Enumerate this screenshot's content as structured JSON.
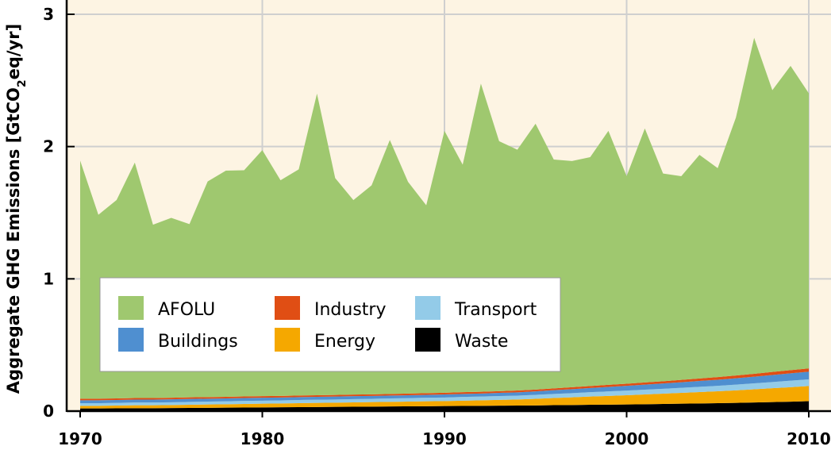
{
  "chart_data": {
    "type": "area",
    "stacked": true,
    "ylabel_main": "Aggregate GHG Emissions [GtCO",
    "ylabel_sub": "2",
    "ylabel_tail": "eq/yr]",
    "xlim": [
      1970,
      2010
    ],
    "ylim": [
      0,
      3
    ],
    "xticks": [
      1970,
      1980,
      1990,
      2000,
      2010
    ],
    "yticks": [
      0,
      1,
      2,
      3
    ],
    "grid": true,
    "legend_position": "lower-left",
    "background": "#fdf4e3",
    "x": [
      1970,
      1971,
      1972,
      1973,
      1974,
      1975,
      1976,
      1977,
      1978,
      1979,
      1980,
      1981,
      1982,
      1983,
      1984,
      1985,
      1986,
      1987,
      1988,
      1989,
      1990,
      1991,
      1992,
      1993,
      1994,
      1995,
      1996,
      1997,
      1998,
      1999,
      2000,
      2001,
      2002,
      2003,
      2004,
      2005,
      2006,
      2007,
      2008,
      2009,
      2010
    ],
    "series": [
      {
        "name": "Waste",
        "color": "#000000",
        "values": [
          0.02,
          0.02,
          0.021,
          0.022,
          0.022,
          0.023,
          0.024,
          0.025,
          0.026,
          0.027,
          0.028,
          0.029,
          0.03,
          0.031,
          0.032,
          0.033,
          0.034,
          0.035,
          0.036,
          0.037,
          0.038,
          0.039,
          0.04,
          0.041,
          0.042,
          0.043,
          0.045,
          0.046,
          0.048,
          0.049,
          0.05,
          0.052,
          0.054,
          0.056,
          0.058,
          0.06,
          0.062,
          0.065,
          0.068,
          0.071,
          0.075
        ]
      },
      {
        "name": "Energy",
        "color": "#f5a800",
        "values": [
          0.02,
          0.02,
          0.021,
          0.022,
          0.022,
          0.023,
          0.024,
          0.025,
          0.026,
          0.027,
          0.028,
          0.029,
          0.03,
          0.031,
          0.032,
          0.033,
          0.034,
          0.035,
          0.036,
          0.037,
          0.038,
          0.04,
          0.042,
          0.044,
          0.046,
          0.05,
          0.054,
          0.058,
          0.062,
          0.066,
          0.07,
          0.074,
          0.078,
          0.082,
          0.086,
          0.09,
          0.095,
          0.1,
          0.105,
          0.11,
          0.115
        ]
      },
      {
        "name": "Transport",
        "color": "#93cbe8",
        "values": [
          0.02,
          0.02,
          0.02,
          0.021,
          0.021,
          0.021,
          0.022,
          0.022,
          0.022,
          0.023,
          0.023,
          0.023,
          0.024,
          0.024,
          0.024,
          0.025,
          0.025,
          0.026,
          0.026,
          0.027,
          0.027,
          0.028,
          0.028,
          0.029,
          0.029,
          0.03,
          0.031,
          0.032,
          0.033,
          0.034,
          0.035,
          0.036,
          0.037,
          0.038,
          0.04,
          0.041,
          0.043,
          0.045,
          0.047,
          0.049,
          0.05
        ]
      },
      {
        "name": "Buildings",
        "color": "#4f8fd0",
        "values": [
          0.022,
          0.022,
          0.022,
          0.022,
          0.022,
          0.022,
          0.022,
          0.022,
          0.022,
          0.022,
          0.022,
          0.022,
          0.022,
          0.022,
          0.022,
          0.022,
          0.022,
          0.022,
          0.022,
          0.022,
          0.023,
          0.023,
          0.023,
          0.024,
          0.025,
          0.026,
          0.028,
          0.03,
          0.032,
          0.034,
          0.036,
          0.038,
          0.04,
          0.042,
          0.044,
          0.046,
          0.048,
          0.05,
          0.053,
          0.056,
          0.058
        ]
      },
      {
        "name": "Industry",
        "color": "#e04e14",
        "values": [
          0.012,
          0.012,
          0.012,
          0.012,
          0.012,
          0.012,
          0.012,
          0.012,
          0.012,
          0.012,
          0.012,
          0.012,
          0.012,
          0.012,
          0.012,
          0.012,
          0.012,
          0.012,
          0.013,
          0.013,
          0.013,
          0.013,
          0.013,
          0.013,
          0.014,
          0.014,
          0.014,
          0.015,
          0.015,
          0.016,
          0.016,
          0.017,
          0.017,
          0.018,
          0.019,
          0.02,
          0.021,
          0.022,
          0.023,
          0.024,
          0.025
        ]
      },
      {
        "name": "AFOLU",
        "color": "#9fc86f",
        "values": [
          1.8,
          1.39,
          1.5,
          1.78,
          1.31,
          1.36,
          1.31,
          1.63,
          1.71,
          1.71,
          1.86,
          1.63,
          1.71,
          2.28,
          1.64,
          1.47,
          1.58,
          1.92,
          1.6,
          1.42,
          1.98,
          1.72,
          2.33,
          1.89,
          1.82,
          2.01,
          1.73,
          1.71,
          1.73,
          1.92,
          1.57,
          1.92,
          1.57,
          1.54,
          1.69,
          1.58,
          1.95,
          2.54,
          2.13,
          2.3,
          2.08
        ]
      }
    ]
  },
  "legend": {
    "items": [
      {
        "name": "AFOLU",
        "color": "#9fc86f"
      },
      {
        "name": "Industry",
        "color": "#e04e14"
      },
      {
        "name": "Transport",
        "color": "#93cbe8"
      },
      {
        "name": "Buildings",
        "color": "#4f8fd0"
      },
      {
        "name": "Energy",
        "color": "#f5a800"
      },
      {
        "name": "Waste",
        "color": "#000000"
      }
    ]
  }
}
